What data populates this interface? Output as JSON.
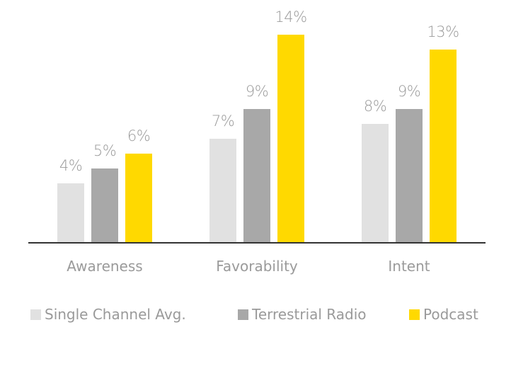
{
  "chart_data": {
    "type": "bar",
    "title": "",
    "xlabel": "",
    "ylabel": "",
    "categories": [
      "Awareness",
      "Favorability",
      "Intent"
    ],
    "series": [
      {
        "name": "Single Channel Avg.",
        "color": "#e1e1e1",
        "values": [
          4,
          7,
          8
        ],
        "labels": [
          "4%",
          "7%",
          "8%"
        ]
      },
      {
        "name": "Terrestrial Radio",
        "color": "#a8a8a8",
        "values": [
          5,
          9,
          9
        ],
        "labels": [
          "5%",
          "9%",
          "9%"
        ]
      },
      {
        "name": "Podcast",
        "color": "#ffd900",
        "values": [
          6,
          14,
          13
        ],
        "labels": [
          "6%",
          "14%",
          "13%"
        ]
      }
    ],
    "value_format": "percent",
    "grid": false,
    "legend_position": "bottom",
    "axis_line_color": "#333333"
  },
  "legend": {
    "items": [
      {
        "label": "Single Channel Avg.",
        "color": "#e1e1e1"
      },
      {
        "label": "Terrestrial Radio",
        "color": "#a8a8a8"
      },
      {
        "label": "Podcast",
        "color": "#ffd900"
      }
    ]
  }
}
